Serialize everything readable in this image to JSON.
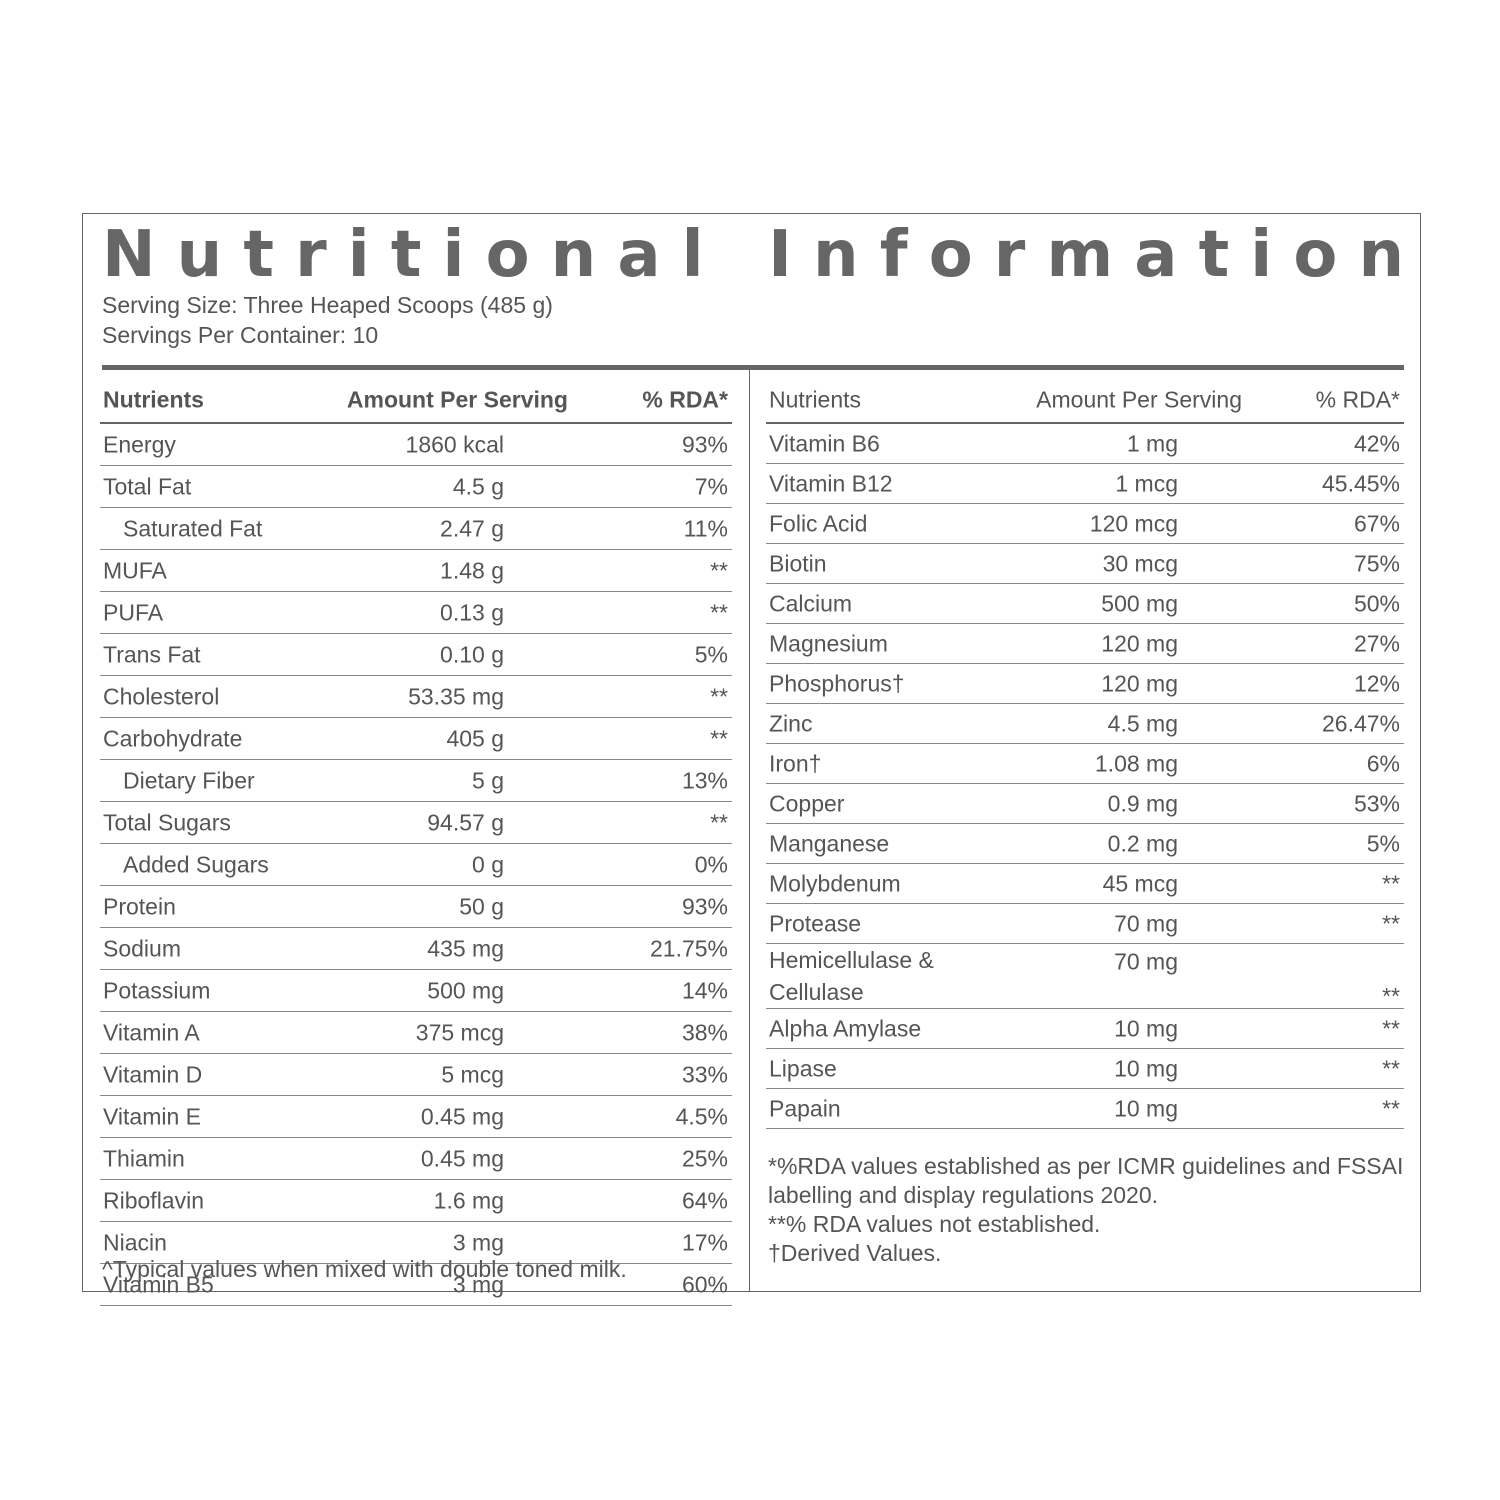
{
  "title": "Nutritional Information",
  "serving_size": "Serving Size: Three Heaped Scoops (485 g)",
  "servings_per_container": "Servings Per Container: 10",
  "left_table": {
    "header": [
      "Nutrients",
      "Amount Per Serving",
      "% RDA*"
    ],
    "rows": [
      {
        "name": "Energy",
        "amount": "1860 kcal",
        "rda": "93%"
      },
      {
        "name": "Total Fat",
        "amount": "4.5 g",
        "rda": "7%"
      },
      {
        "name": "Saturated Fat",
        "amount": "2.47 g",
        "rda": "11%",
        "indent": true
      },
      {
        "name": "MUFA",
        "amount": "1.48 g",
        "rda": "**"
      },
      {
        "name": "PUFA",
        "amount": "0.13 g",
        "rda": "**"
      },
      {
        "name": "Trans Fat",
        "amount": "0.10 g",
        "rda": "5%"
      },
      {
        "name": "Cholesterol",
        "amount": "53.35 mg",
        "rda": "**"
      },
      {
        "name": "Carbohydrate",
        "amount": "405 g",
        "rda": "**"
      },
      {
        "name": "Dietary Fiber",
        "amount": "5 g",
        "rda": "13%",
        "indent": true
      },
      {
        "name": "Total Sugars",
        "amount": "94.57 g",
        "rda": "**"
      },
      {
        "name": "Added Sugars",
        "amount": "0 g",
        "rda": "0%",
        "indent": true
      },
      {
        "name": "Protein",
        "amount": "50 g",
        "rda": "93%"
      },
      {
        "name": "Sodium",
        "amount": "435 mg",
        "rda": "21.75%"
      },
      {
        "name": "Potassium",
        "amount": "500 mg",
        "rda": "14%"
      },
      {
        "name": "Vitamin A",
        "amount": "375 mcg",
        "rda": "38%"
      },
      {
        "name": "Vitamin D",
        "amount": "5 mcg",
        "rda": "33%"
      },
      {
        "name": "Vitamin E",
        "amount": "0.45 mg",
        "rda": "4.5%"
      },
      {
        "name": "Thiamin",
        "amount": "0.45 mg",
        "rda": "25%"
      },
      {
        "name": "Riboflavin",
        "amount": "1.6 mg",
        "rda": "64%"
      },
      {
        "name": "Niacin",
        "amount": "3 mg",
        "rda": "17%"
      },
      {
        "name": "Vitamin B5",
        "amount": "3 mg",
        "rda": "60%"
      }
    ],
    "note": "^Typical values when mixed with double toned milk."
  },
  "right_table": {
    "header": [
      "Nutrients",
      "Amount Per Serving",
      "% RDA*"
    ],
    "rows": [
      {
        "name": "Vitamin B6",
        "amount": "1 mg",
        "rda": "42%"
      },
      {
        "name": "Vitamin B12",
        "amount": "1 mcg",
        "rda": "45.45%"
      },
      {
        "name": "Folic Acid",
        "amount": "120 mcg",
        "rda": "67%"
      },
      {
        "name": "Biotin",
        "amount": "30 mcg",
        "rda": "75%"
      },
      {
        "name": "Calcium",
        "amount": "500 mg",
        "rda": "50%"
      },
      {
        "name": "Magnesium",
        "amount": "120 mg",
        "rda": "27%"
      },
      {
        "name": "Phosphorus†",
        "amount": "120 mg",
        "rda": "12%"
      },
      {
        "name": "Zinc",
        "amount": "4.5 mg",
        "rda": "26.47%"
      },
      {
        "name": "Iron†",
        "amount": "1.08 mg",
        "rda": "6%"
      },
      {
        "name": "Copper",
        "amount": "0.9 mg",
        "rda": "53%"
      },
      {
        "name": "Manganese",
        "amount": "0.2 mg",
        "rda": "5%"
      },
      {
        "name": "Molybdenum",
        "amount": "45 mcg",
        "rda": "**"
      },
      {
        "name": "Protease",
        "amount": "70 mg",
        "rda": "**"
      },
      {
        "name": "Hemicellulase & Cellulase",
        "amount": "70 mg",
        "rda": "**"
      },
      {
        "name": "Alpha Amylase",
        "amount": "10 mg",
        "rda": "**"
      },
      {
        "name": "Lipase",
        "amount": "10 mg",
        "rda": "**"
      },
      {
        "name": "Papain",
        "amount": "10 mg",
        "rda": "**"
      }
    ],
    "notes": [
      "*%RDA values established as per ICMR guidelines and FSSAI labelling and display regulations 2020.",
      "**% RDA values not established.",
      "†Derived Values."
    ]
  }
}
